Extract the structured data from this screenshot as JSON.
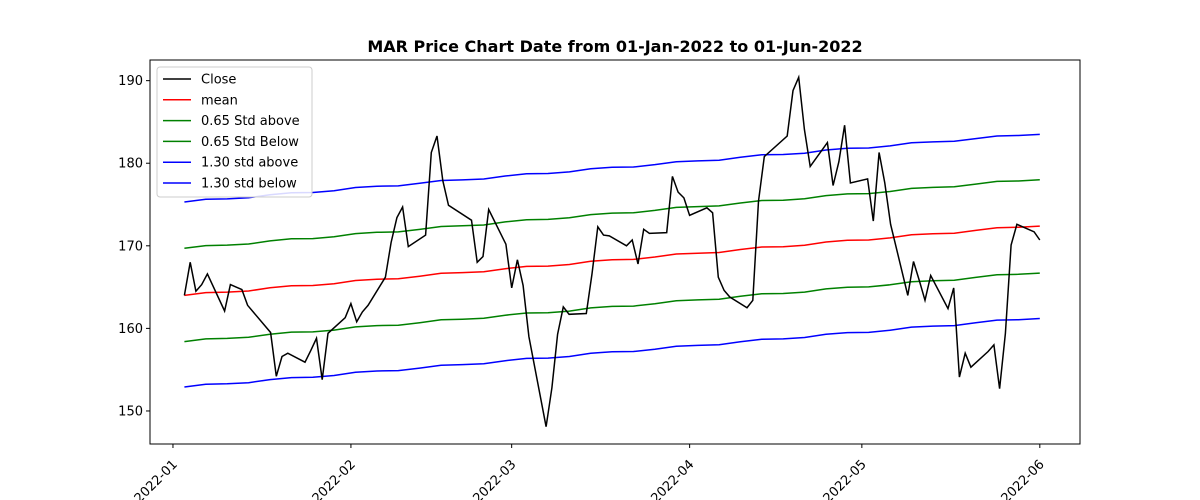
{
  "chart_data": {
    "type": "line",
    "title": "MAR Price Chart Date from 01-Jan-2022 to 01-Jun-2022",
    "xlabel": "",
    "ylabel": "",
    "x_range": [
      "2021-12-28",
      "2022-06-08"
    ],
    "ylim": [
      146,
      192.5
    ],
    "x_ticks": [
      "2022-01-01",
      "2022-02-01",
      "2022-03-01",
      "2022-04-01",
      "2022-05-01",
      "2022-06-01"
    ],
    "x_tick_labels": [
      "2022-01",
      "2022-02",
      "2022-03",
      "2022-04",
      "2022-05",
      "2022-06"
    ],
    "y_ticks": [
      150,
      160,
      170,
      180,
      190
    ],
    "y_tick_labels": [
      "150",
      "160",
      "170",
      "180",
      "190"
    ],
    "grid": false,
    "legend_position": "upper-left",
    "series": [
      {
        "name": "Close",
        "color": "#000000",
        "points": [
          [
            "2022-01-03",
            164.0
          ],
          [
            "2022-01-04",
            168.0
          ],
          [
            "2022-01-05",
            164.5
          ],
          [
            "2022-01-06",
            165.3
          ],
          [
            "2022-01-07",
            166.6
          ],
          [
            "2022-01-10",
            162.1
          ],
          [
            "2022-01-11",
            165.3
          ],
          [
            "2022-01-12",
            165.0
          ],
          [
            "2022-01-13",
            164.7
          ],
          [
            "2022-01-14",
            162.8
          ],
          [
            "2022-01-18",
            159.5
          ],
          [
            "2022-01-19",
            154.2
          ],
          [
            "2022-01-20",
            156.6
          ],
          [
            "2022-01-21",
            157.0
          ],
          [
            "2022-01-24",
            155.9
          ],
          [
            "2022-01-25",
            157.3
          ],
          [
            "2022-01-26",
            158.8
          ],
          [
            "2022-01-27",
            153.8
          ],
          [
            "2022-01-28",
            159.4
          ],
          [
            "2022-01-31",
            161.3
          ],
          [
            "2022-02-01",
            163.0
          ],
          [
            "2022-02-02",
            160.8
          ],
          [
            "2022-02-03",
            162.0
          ],
          [
            "2022-02-04",
            162.8
          ],
          [
            "2022-02-07",
            166.2
          ],
          [
            "2022-02-08",
            170.4
          ],
          [
            "2022-02-09",
            173.4
          ],
          [
            "2022-02-10",
            174.7
          ],
          [
            "2022-02-11",
            169.9
          ],
          [
            "2022-02-14",
            171.3
          ],
          [
            "2022-02-15",
            181.3
          ],
          [
            "2022-02-16",
            183.3
          ],
          [
            "2022-02-17",
            177.9
          ],
          [
            "2022-02-18",
            174.9
          ],
          [
            "2022-02-22",
            173.1
          ],
          [
            "2022-02-23",
            168.0
          ],
          [
            "2022-02-24",
            168.7
          ],
          [
            "2022-02-25",
            174.4
          ],
          [
            "2022-02-28",
            170.2
          ],
          [
            "2022-03-01",
            164.9
          ],
          [
            "2022-03-02",
            168.3
          ],
          [
            "2022-03-03",
            165.2
          ],
          [
            "2022-03-04",
            159.0
          ],
          [
            "2022-03-07",
            148.1
          ],
          [
            "2022-03-08",
            152.8
          ],
          [
            "2022-03-09",
            159.3
          ],
          [
            "2022-03-10",
            162.6
          ],
          [
            "2022-03-11",
            161.7
          ],
          [
            "2022-03-14",
            161.8
          ],
          [
            "2022-03-15",
            166.6
          ],
          [
            "2022-03-16",
            172.3
          ],
          [
            "2022-03-17",
            171.3
          ],
          [
            "2022-03-18",
            171.2
          ],
          [
            "2022-03-21",
            170.0
          ],
          [
            "2022-03-22",
            170.7
          ],
          [
            "2022-03-23",
            167.8
          ],
          [
            "2022-03-24",
            172.0
          ],
          [
            "2022-03-25",
            171.5
          ],
          [
            "2022-03-28",
            171.6
          ],
          [
            "2022-03-29",
            178.4
          ],
          [
            "2022-03-30",
            176.5
          ],
          [
            "2022-03-31",
            175.8
          ],
          [
            "2022-04-01",
            173.7
          ],
          [
            "2022-04-04",
            174.6
          ],
          [
            "2022-04-05",
            174.0
          ],
          [
            "2022-04-06",
            166.2
          ],
          [
            "2022-04-07",
            164.6
          ],
          [
            "2022-04-08",
            163.8
          ],
          [
            "2022-04-11",
            162.5
          ],
          [
            "2022-04-12",
            163.4
          ],
          [
            "2022-04-13",
            175.4
          ],
          [
            "2022-04-14",
            180.8
          ],
          [
            "2022-04-18",
            183.3
          ],
          [
            "2022-04-19",
            188.8
          ],
          [
            "2022-04-20",
            190.4
          ],
          [
            "2022-04-21",
            184.1
          ],
          [
            "2022-04-22",
            179.6
          ],
          [
            "2022-04-25",
            182.5
          ],
          [
            "2022-04-26",
            177.3
          ],
          [
            "2022-04-27",
            180.2
          ],
          [
            "2022-04-28",
            184.6
          ],
          [
            "2022-04-29",
            177.6
          ],
          [
            "2022-05-02",
            178.1
          ],
          [
            "2022-05-03",
            173.0
          ],
          [
            "2022-05-04",
            181.3
          ],
          [
            "2022-05-05",
            177.6
          ],
          [
            "2022-05-06",
            172.6
          ],
          [
            "2022-05-09",
            164.0
          ],
          [
            "2022-05-10",
            168.1
          ],
          [
            "2022-05-11",
            165.8
          ],
          [
            "2022-05-12",
            163.4
          ],
          [
            "2022-05-13",
            166.4
          ],
          [
            "2022-05-16",
            162.4
          ],
          [
            "2022-05-17",
            164.9
          ],
          [
            "2022-05-18",
            154.1
          ],
          [
            "2022-05-19",
            157.0
          ],
          [
            "2022-05-20",
            155.3
          ],
          [
            "2022-05-23",
            157.2
          ],
          [
            "2022-05-24",
            158.0
          ],
          [
            "2022-05-25",
            152.7
          ],
          [
            "2022-05-26",
            159.4
          ],
          [
            "2022-05-27",
            170.1
          ],
          [
            "2022-05-28",
            172.6
          ],
          [
            "2022-05-31",
            171.7
          ],
          [
            "2022-06-01",
            170.7
          ]
        ]
      },
      {
        "name": "mean",
        "color": "#ff0000",
        "start": [
          "2022-01-03",
          164.0
        ],
        "end": [
          "2022-06-01",
          172.5
        ]
      },
      {
        "name": "0.65 Std above",
        "color": "#008000",
        "start": [
          "2022-01-03",
          169.7
        ],
        "end": [
          "2022-06-01",
          178.1
        ]
      },
      {
        "name": "0.65 Std Below",
        "color": "#008000",
        "start": [
          "2022-01-03",
          158.4
        ],
        "end": [
          "2022-06-01",
          166.8
        ]
      },
      {
        "name": "1.30 std above",
        "color": "#0000ff",
        "start": [
          "2022-01-03",
          175.3
        ],
        "end": [
          "2022-06-01",
          183.6
        ]
      },
      {
        "name": "1.30 std below",
        "color": "#0000ff",
        "start": [
          "2022-01-03",
          152.9
        ],
        "end": [
          "2022-06-01",
          161.3
        ]
      }
    ]
  }
}
